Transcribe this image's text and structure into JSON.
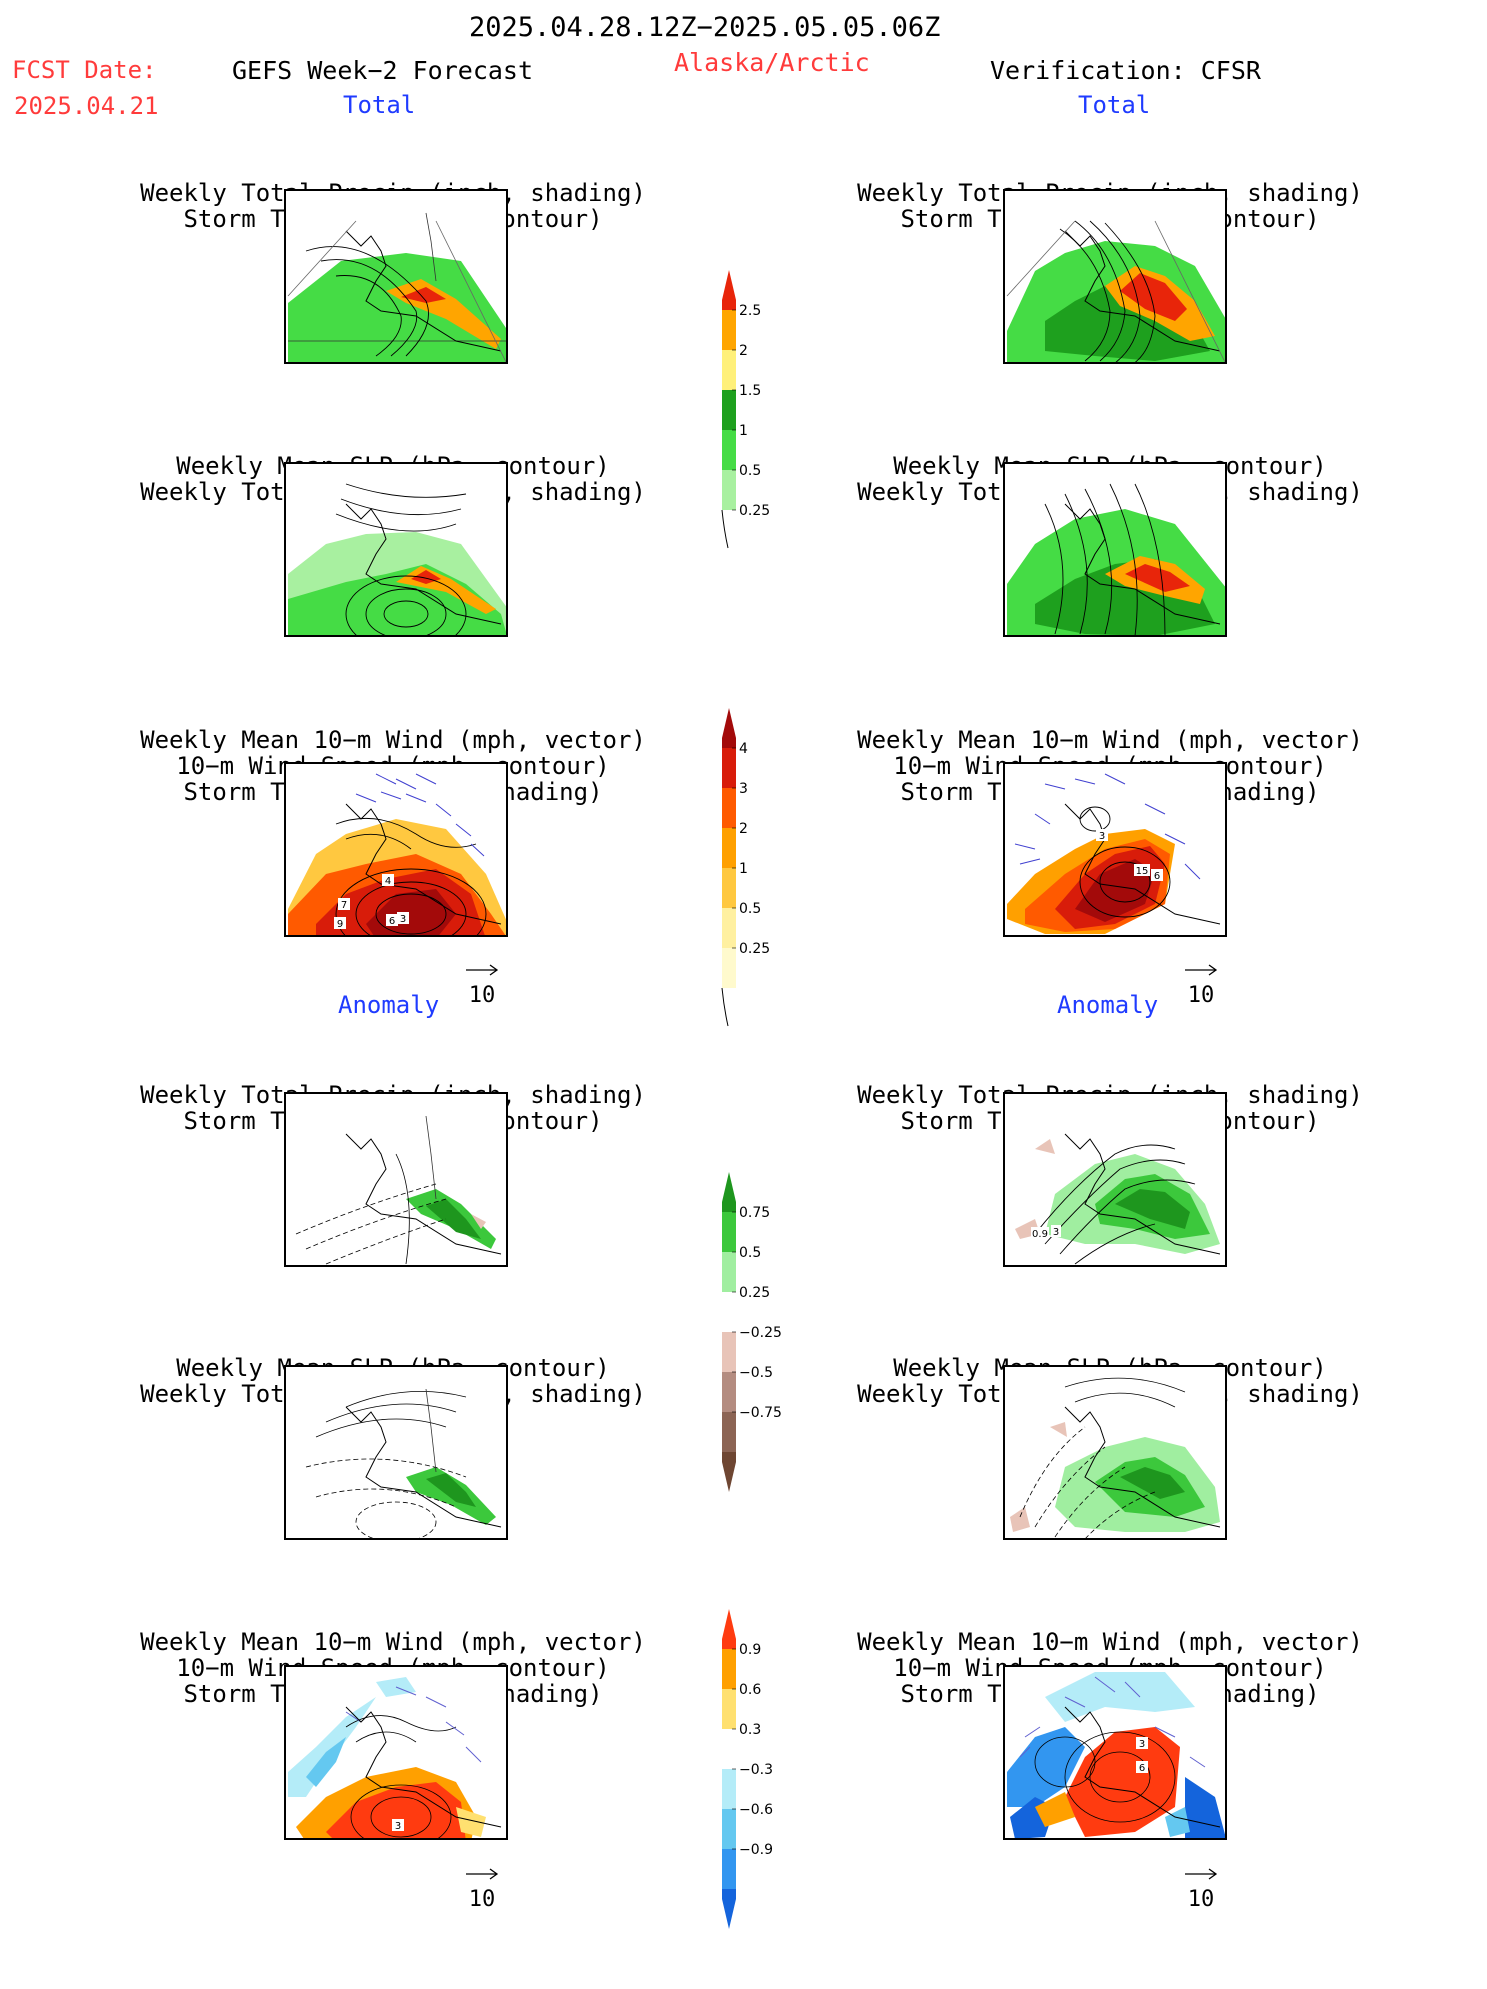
{
  "header": {
    "date_range": "2025.04.28.12Z−2025.05.05.06Z",
    "fcst_label": "FCST Date:",
    "fcst_date": "2025.04.21",
    "left_title": "GEFS Week−2 Forecast",
    "region": "Alaska/Arctic",
    "right_title": "Verification: CFSR"
  },
  "sections": {
    "total": "Total",
    "anomaly": "Anomaly"
  },
  "panel_titles": {
    "precip_storm": [
      "Weekly Total Precip (inch, shading)",
      "Storm Track Density (contour)"
    ],
    "slp_precip": [
      "Weekly Mean SLP (hPa, contour)",
      "Weekly Total Precip (inch, shading)"
    ],
    "wind_storm": [
      "Weekly Mean 10−m Wind (mph, vector)",
      "10−m Wind Speed (mph, contour)",
      "Storm Track Density (shading)"
    ]
  },
  "vector_ref": "10",
  "colorbars": {
    "precip_total": {
      "labels": [
        "2.5",
        "2",
        "1.5",
        "1",
        "0.5",
        "0.25"
      ],
      "colors": [
        "#e8250a",
        "#ffa500",
        "#fff07a",
        "#1ea01e",
        "#45dc45",
        "#a8f0a0"
      ]
    },
    "storm_total": {
      "labels": [
        "4",
        "3",
        "2",
        "1",
        "0.5",
        "0.25"
      ],
      "colors": [
        "#a30a0a",
        "#d81c0a",
        "#ff5a00",
        "#ffa000",
        "#ffc840",
        "#fff0a0",
        "#fffacd"
      ]
    },
    "precip_anom": {
      "labels": [
        "0.75",
        "0.5",
        "0.25",
        "−0.25",
        "−0.5",
        "−0.75"
      ],
      "colors": [
        "#1e961e",
        "#3cc83c",
        "#a0eea0",
        "#ffffff",
        "#e8c4b8",
        "#b48c80",
        "#8c6454",
        "#6e4632"
      ]
    },
    "storm_anom": {
      "labels": [
        "0.9",
        "0.6",
        "0.3",
        "−0.3",
        "−0.6",
        "−0.9"
      ],
      "colors": [
        "#ff3b10",
        "#ffa000",
        "#ffe070",
        "#ffffff",
        "#b4ecf8",
        "#64c8f0",
        "#3296f0",
        "#1464dc"
      ]
    }
  },
  "map_labels": {
    "wind_total_left": [
      "4",
      "7",
      "9",
      "6",
      "3"
    ],
    "wind_total_right": [
      "3",
      "15",
      "6"
    ],
    "precip_anom_right": [
      "0.9",
      "3"
    ],
    "wind_anom_left": [
      "3"
    ],
    "wind_anom_right": [
      "3",
      "6"
    ]
  },
  "colors": {
    "header_red": "#ff3b3b",
    "section_blue": "#1f3bff"
  }
}
